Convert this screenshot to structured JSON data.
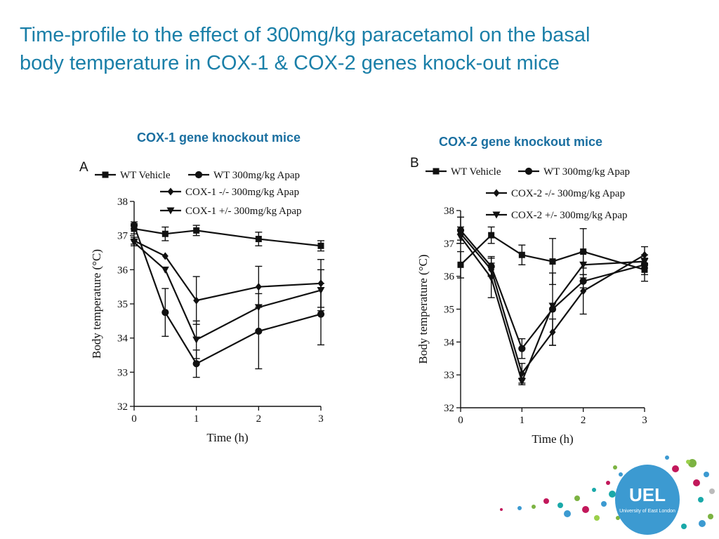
{
  "title": {
    "line1": "Time-profile to the effect of 300mg/kg paracetamol on the basal",
    "line2": "body temperature in COX-1 & COX-2 genes knock-out mice"
  },
  "panel_captions": {
    "left": "COX-1 gene knockout mice",
    "right": "COX-2 gene knockout mice"
  },
  "logo": {
    "text": "UEL",
    "subtext": "University of East London"
  },
  "chart_data": [
    {
      "type": "line",
      "panel_label": "A",
      "title": "",
      "xlabel": "Time (h)",
      "ylabel": "Body temperature (°C)",
      "xlim": [
        0,
        3
      ],
      "ylim": [
        32,
        38
      ],
      "xticks": [
        "0",
        "1",
        "2",
        "3"
      ],
      "yticks": [
        "32",
        "33",
        "34",
        "35",
        "36",
        "37",
        "38"
      ],
      "grid": false,
      "legend_position": "top",
      "series": [
        {
          "name": "WT Vehicle",
          "marker": "square",
          "x": [
            0,
            0.5,
            1,
            2,
            3
          ],
          "y": [
            37.2,
            37.05,
            37.15,
            36.9,
            36.7
          ],
          "err": [
            0.15,
            0.2,
            0.15,
            0.2,
            0.15
          ]
        },
        {
          "name": "WT 300mg/kg Apap",
          "marker": "circle",
          "x": [
            0,
            0.5,
            1,
            2,
            3
          ],
          "y": [
            37.3,
            34.75,
            33.25,
            34.2,
            34.7
          ],
          "err": [
            0.1,
            0.7,
            0.4,
            1.1,
            0.9
          ]
        },
        {
          "name": "COX-1 -/- 300mg/kg Apap",
          "marker": "diamond",
          "x": [
            0,
            0.5,
            1,
            2,
            3
          ],
          "y": [
            36.85,
            36.4,
            35.1,
            35.5,
            35.6
          ],
          "err": [
            0.1,
            0,
            0.7,
            0.6,
            0.7
          ]
        },
        {
          "name": "COX-1 +/- 300mg/kg Apap",
          "marker": "triangle-down",
          "x": [
            0,
            0.5,
            1,
            2,
            3
          ],
          "y": [
            36.8,
            36.0,
            33.95,
            34.9,
            35.4
          ],
          "err": [
            0.1,
            0,
            0.55,
            0,
            0.6
          ]
        }
      ]
    },
    {
      "type": "line",
      "panel_label": "B",
      "title": "",
      "xlabel": "Time (h)",
      "ylabel": "Body temperature (°C)",
      "xlim": [
        0,
        3
      ],
      "ylim": [
        32,
        38
      ],
      "xticks": [
        "0",
        "1",
        "2",
        "3"
      ],
      "yticks": [
        "32",
        "33",
        "34",
        "35",
        "36",
        "37",
        "38"
      ],
      "grid": false,
      "legend_position": "top",
      "series": [
        {
          "name": "WT Vehicle",
          "marker": "square",
          "x": [
            0,
            0.5,
            1,
            1.5,
            2,
            3
          ],
          "y": [
            36.35,
            37.25,
            36.65,
            36.45,
            36.75,
            36.2
          ],
          "err": [
            0.4,
            0.25,
            0.3,
            0.7,
            0.7,
            0.35
          ]
        },
        {
          "name": "WT 300mg/kg Apap",
          "marker": "circle",
          "x": [
            0,
            0.5,
            1,
            1.5,
            2,
            3
          ],
          "y": [
            37.4,
            36.3,
            33.8,
            35.0,
            35.85,
            36.35
          ],
          "err": [
            0.4,
            0.3,
            0.3,
            1.1,
            0.2,
            0.3
          ]
        },
        {
          "name": "COX-2 -/- 300mg/kg Apap",
          "marker": "diamond",
          "x": [
            0,
            0.5,
            1,
            1.5,
            2,
            3
          ],
          "y": [
            37.3,
            36.2,
            33.05,
            34.3,
            35.55,
            36.65
          ],
          "err": [
            0.2,
            0.2,
            0.3,
            0.4,
            0.7,
            0.25
          ]
        },
        {
          "name": "COX-2 +/- 300mg/kg Apap",
          "marker": "triangle-down",
          "x": [
            0,
            0.5,
            1,
            1.5,
            2,
            3
          ],
          "y": [
            37.2,
            35.95,
            32.8,
            35.1,
            36.35,
            36.45
          ],
          "err": [
            0.2,
            0.6,
            0.1,
            0,
            0.4,
            0.2
          ]
        }
      ]
    }
  ]
}
